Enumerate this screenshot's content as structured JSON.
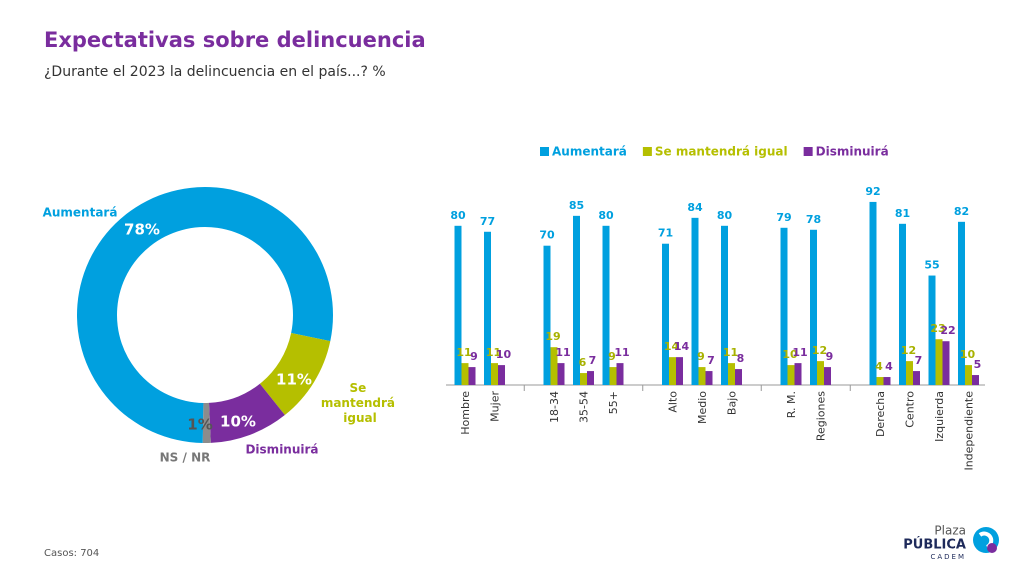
{
  "header": {
    "title": "Expectativas sobre delincuencia",
    "subtitle": "¿Durante el 2023 la delincuencia en el país...? %"
  },
  "chart_data": [
    {
      "type": "donut",
      "labels": [
        "Aumentará",
        "Se mantendrá igual",
        "Disminuirá",
        "NS / NR"
      ],
      "values": [
        78,
        11,
        10,
        1
      ],
      "value_labels": [
        "78%",
        "11%",
        "10%",
        "1%"
      ],
      "colors": [
        "#00a0df",
        "#b5bf00",
        "#7a2d9e",
        "#8c8c8c"
      ]
    },
    {
      "type": "bar",
      "categories": [
        "Hombre",
        "Mujer",
        "18-34",
        "35-54",
        "55+",
        "Alto",
        "Medio",
        "Bajo",
        "R. M.",
        "Regiones",
        "Derecha",
        "Centro",
        "Izquierda",
        "Independiente"
      ],
      "series": [
        {
          "name": "Aumentará",
          "color": "#00a0df",
          "values": [
            80,
            77,
            70,
            85,
            80,
            71,
            84,
            80,
            79,
            78,
            92,
            81,
            55,
            82
          ]
        },
        {
          "name": "Se mantendrá igual",
          "color": "#b5bf00",
          "values": [
            11,
            11,
            19,
            6,
            9,
            14,
            9,
            11,
            10,
            12,
            4,
            12,
            23,
            10
          ]
        },
        {
          "name": "Disminuirá",
          "color": "#7a2d9e",
          "values": [
            9,
            10,
            11,
            7,
            11,
            14,
            7,
            8,
            11,
            9,
            4,
            7,
            22,
            5
          ]
        }
      ],
      "legend": "top"
    }
  ],
  "footer": {
    "note": "Casos: 704",
    "logo": {
      "top": "Plaza",
      "main": "PÚBLICA",
      "sub": "CADEM"
    }
  }
}
